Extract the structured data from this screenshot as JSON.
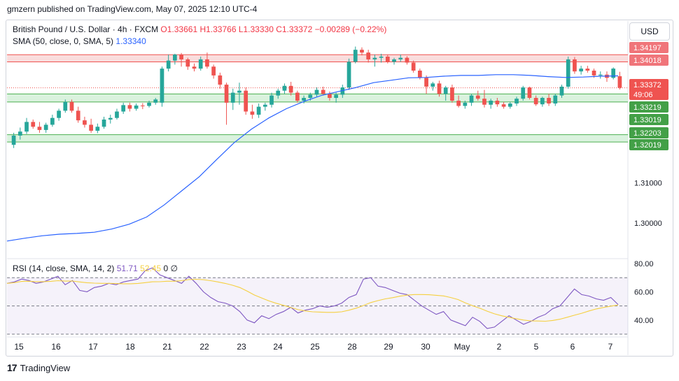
{
  "header": {
    "published": "gmzern published on TradingView.com, May 07, 2025 12:10 UTC-4"
  },
  "legend": {
    "symbol": "British Pound / U.S. Dollar · 4h · FXCM",
    "ohlc": "O1.33661 H1.33766 L1.33330 C1.33372 −0.00289 (−0.22%)",
    "sma_label": "SMA (50, close, 0, SMA, 5)",
    "sma_value": "1.33340",
    "rsi_label": "RSI (14, close, SMA, 14, 2)",
    "rsi_value": "51.71",
    "rsi_ma_value": "52.45",
    "rsi_extra": "0  ∅"
  },
  "currency": "USD",
  "branding": "TradingView",
  "colors": {
    "up": "#26a69a",
    "down": "#ef5350",
    "sma": "#2962ff",
    "rsi": "#7e57c2",
    "rsi_ma": "#f5d040",
    "zone_red": "#f8d7d7",
    "zone_green": "#d4f0d8"
  },
  "chart_data": {
    "type": "candlestick",
    "timeframe": "4h",
    "x_ticks": [
      "15",
      "16",
      "17",
      "18",
      "21",
      "22",
      "23",
      "24",
      "25",
      "28",
      "29",
      "30",
      "May",
      "2",
      "5",
      "6",
      "7"
    ],
    "y_ticks": [
      "1.30000",
      "1.31000"
    ],
    "price_tags": [
      {
        "value": "1.34197",
        "type": "zone"
      },
      {
        "value": "1.34018",
        "type": "zone"
      },
      {
        "value": "1.33372",
        "type": "last",
        "sub": "49:06"
      },
      {
        "value": "1.33219",
        "type": "zone"
      },
      {
        "value": "1.33019",
        "type": "zone"
      },
      {
        "value": "1.32203",
        "type": "zone"
      },
      {
        "value": "1.32019",
        "type": "zone"
      }
    ],
    "zones": [
      {
        "from": 1.34018,
        "to": 1.34197,
        "color": "red"
      },
      {
        "from": 1.33019,
        "to": 1.33219,
        "color": "green"
      },
      {
        "from": 1.32019,
        "to": 1.32203,
        "color": "green"
      }
    ],
    "last_price": 1.33372,
    "candles": [
      {
        "o": 1.3195,
        "h": 1.3225,
        "l": 1.3187,
        "c": 1.3218
      },
      {
        "o": 1.3218,
        "h": 1.3238,
        "l": 1.3208,
        "c": 1.3228
      },
      {
        "o": 1.3228,
        "h": 1.3262,
        "l": 1.3222,
        "c": 1.3252
      },
      {
        "o": 1.3252,
        "h": 1.3258,
        "l": 1.3235,
        "c": 1.324
      },
      {
        "o": 1.324,
        "h": 1.3252,
        "l": 1.3225,
        "c": 1.3232
      },
      {
        "o": 1.3232,
        "h": 1.325,
        "l": 1.3225,
        "c": 1.3245
      },
      {
        "o": 1.3245,
        "h": 1.327,
        "l": 1.324,
        "c": 1.3262
      },
      {
        "o": 1.3262,
        "h": 1.3285,
        "l": 1.3255,
        "c": 1.328
      },
      {
        "o": 1.328,
        "h": 1.3308,
        "l": 1.3275,
        "c": 1.3302
      },
      {
        "o": 1.3302,
        "h": 1.3308,
        "l": 1.3275,
        "c": 1.328
      },
      {
        "o": 1.328,
        "h": 1.329,
        "l": 1.325,
        "c": 1.3256
      },
      {
        "o": 1.3256,
        "h": 1.3265,
        "l": 1.3238,
        "c": 1.3245
      },
      {
        "o": 1.3245,
        "h": 1.326,
        "l": 1.3225,
        "c": 1.323
      },
      {
        "o": 1.323,
        "h": 1.3248,
        "l": 1.3224,
        "c": 1.324
      },
      {
        "o": 1.324,
        "h": 1.3265,
        "l": 1.3235,
        "c": 1.3258
      },
      {
        "o": 1.3258,
        "h": 1.327,
        "l": 1.3248,
        "c": 1.3262
      },
      {
        "o": 1.3262,
        "h": 1.3285,
        "l": 1.3258,
        "c": 1.3278
      },
      {
        "o": 1.3278,
        "h": 1.33,
        "l": 1.3272,
        "c": 1.3294
      },
      {
        "o": 1.3294,
        "h": 1.33,
        "l": 1.3278,
        "c": 1.3285
      },
      {
        "o": 1.3285,
        "h": 1.3298,
        "l": 1.328,
        "c": 1.3293
      },
      {
        "o": 1.3293,
        "h": 1.3299,
        "l": 1.3284,
        "c": 1.3292
      },
      {
        "o": 1.3292,
        "h": 1.3305,
        "l": 1.3288,
        "c": 1.33
      },
      {
        "o": 1.33,
        "h": 1.3312,
        "l": 1.3295,
        "c": 1.3308
      },
      {
        "o": 1.33,
        "h": 1.339,
        "l": 1.329,
        "c": 1.3385
      },
      {
        "o": 1.3385,
        "h": 1.342,
        "l": 1.3378,
        "c": 1.3405
      },
      {
        "o": 1.3405,
        "h": 1.3422,
        "l": 1.3395,
        "c": 1.342
      },
      {
        "o": 1.342,
        "h": 1.3424,
        "l": 1.339,
        "c": 1.3408
      },
      {
        "o": 1.3408,
        "h": 1.3412,
        "l": 1.3382,
        "c": 1.339
      },
      {
        "o": 1.339,
        "h": 1.3398,
        "l": 1.3378,
        "c": 1.3385
      },
      {
        "o": 1.3385,
        "h": 1.3415,
        "l": 1.338,
        "c": 1.3408
      },
      {
        "o": 1.3408,
        "h": 1.3425,
        "l": 1.3385,
        "c": 1.339
      },
      {
        "o": 1.339,
        "h": 1.3395,
        "l": 1.336,
        "c": 1.3368
      },
      {
        "o": 1.3368,
        "h": 1.3375,
        "l": 1.3335,
        "c": 1.3345
      },
      {
        "o": 1.3345,
        "h": 1.335,
        "l": 1.3245,
        "c": 1.33
      },
      {
        "o": 1.33,
        "h": 1.3335,
        "l": 1.3282,
        "c": 1.3325
      },
      {
        "o": 1.3325,
        "h": 1.335,
        "l": 1.3295,
        "c": 1.333
      },
      {
        "o": 1.333,
        "h": 1.3338,
        "l": 1.327,
        "c": 1.3278
      },
      {
        "o": 1.3278,
        "h": 1.3295,
        "l": 1.326,
        "c": 1.327
      },
      {
        "o": 1.327,
        "h": 1.3298,
        "l": 1.3262,
        "c": 1.329
      },
      {
        "o": 1.329,
        "h": 1.33,
        "l": 1.328,
        "c": 1.3295
      },
      {
        "o": 1.3295,
        "h": 1.3325,
        "l": 1.3288,
        "c": 1.3318
      },
      {
        "o": 1.3318,
        "h": 1.3335,
        "l": 1.331,
        "c": 1.333
      },
      {
        "o": 1.333,
        "h": 1.3348,
        "l": 1.3322,
        "c": 1.3342
      },
      {
        "o": 1.3342,
        "h": 1.3352,
        "l": 1.3318,
        "c": 1.3325
      },
      {
        "o": 1.3325,
        "h": 1.333,
        "l": 1.33,
        "c": 1.3305
      },
      {
        "o": 1.3305,
        "h": 1.3318,
        "l": 1.3298,
        "c": 1.3312
      },
      {
        "o": 1.3312,
        "h": 1.3325,
        "l": 1.3305,
        "c": 1.332
      },
      {
        "o": 1.332,
        "h": 1.3338,
        "l": 1.3315,
        "c": 1.3332
      },
      {
        "o": 1.3332,
        "h": 1.334,
        "l": 1.3318,
        "c": 1.3322
      },
      {
        "o": 1.3322,
        "h": 1.3328,
        "l": 1.3305,
        "c": 1.3312
      },
      {
        "o": 1.3312,
        "h": 1.3325,
        "l": 1.33,
        "c": 1.332
      },
      {
        "o": 1.332,
        "h": 1.3345,
        "l": 1.3312,
        "c": 1.3338
      },
      {
        "o": 1.3338,
        "h": 1.341,
        "l": 1.3332,
        "c": 1.3402
      },
      {
        "o": 1.3402,
        "h": 1.344,
        "l": 1.3398,
        "c": 1.3432
      },
      {
        "o": 1.3432,
        "h": 1.3438,
        "l": 1.3418,
        "c": 1.3425
      },
      {
        "o": 1.3425,
        "h": 1.3432,
        "l": 1.34,
        "c": 1.3408
      },
      {
        "o": 1.3408,
        "h": 1.342,
        "l": 1.339,
        "c": 1.3412
      },
      {
        "o": 1.3412,
        "h": 1.3422,
        "l": 1.34,
        "c": 1.3415
      },
      {
        "o": 1.3415,
        "h": 1.342,
        "l": 1.3398,
        "c": 1.3402
      },
      {
        "o": 1.3402,
        "h": 1.3412,
        "l": 1.3395,
        "c": 1.3408
      },
      {
        "o": 1.3408,
        "h": 1.342,
        "l": 1.3402,
        "c": 1.3412
      },
      {
        "o": 1.3412,
        "h": 1.3416,
        "l": 1.3395,
        "c": 1.34
      },
      {
        "o": 1.34,
        "h": 1.3405,
        "l": 1.3375,
        "c": 1.338
      },
      {
        "o": 1.338,
        "h": 1.3385,
        "l": 1.3358,
        "c": 1.3362
      },
      {
        "o": 1.3362,
        "h": 1.3368,
        "l": 1.3322,
        "c": 1.334
      },
      {
        "o": 1.334,
        "h": 1.3352,
        "l": 1.333,
        "c": 1.3348
      },
      {
        "o": 1.3348,
        "h": 1.3355,
        "l": 1.3315,
        "c": 1.3322
      },
      {
        "o": 1.3322,
        "h": 1.3342,
        "l": 1.3305,
        "c": 1.3338
      },
      {
        "o": 1.3338,
        "h": 1.3345,
        "l": 1.33,
        "c": 1.3305
      },
      {
        "o": 1.3305,
        "h": 1.3318,
        "l": 1.3288,
        "c": 1.3292
      },
      {
        "o": 1.3292,
        "h": 1.3305,
        "l": 1.3285,
        "c": 1.33
      },
      {
        "o": 1.33,
        "h": 1.3322,
        "l": 1.3292,
        "c": 1.3318
      },
      {
        "o": 1.3318,
        "h": 1.333,
        "l": 1.3305,
        "c": 1.331
      },
      {
        "o": 1.331,
        "h": 1.3332,
        "l": 1.3288,
        "c": 1.3295
      },
      {
        "o": 1.3295,
        "h": 1.331,
        "l": 1.3285,
        "c": 1.3305
      },
      {
        "o": 1.3305,
        "h": 1.3312,
        "l": 1.329,
        "c": 1.3296
      },
      {
        "o": 1.3296,
        "h": 1.3302,
        "l": 1.3285,
        "c": 1.329
      },
      {
        "o": 1.329,
        "h": 1.3302,
        "l": 1.3285,
        "c": 1.3298
      },
      {
        "o": 1.3298,
        "h": 1.3315,
        "l": 1.3292,
        "c": 1.331
      },
      {
        "o": 1.331,
        "h": 1.3342,
        "l": 1.3305,
        "c": 1.3338
      },
      {
        "o": 1.3338,
        "h": 1.334,
        "l": 1.3308,
        "c": 1.3312
      },
      {
        "o": 1.3312,
        "h": 1.3318,
        "l": 1.3292,
        "c": 1.3296
      },
      {
        "o": 1.3296,
        "h": 1.3315,
        "l": 1.329,
        "c": 1.3312
      },
      {
        "o": 1.3312,
        "h": 1.3322,
        "l": 1.3292,
        "c": 1.3298
      },
      {
        "o": 1.3298,
        "h": 1.3322,
        "l": 1.3292,
        "c": 1.3318
      },
      {
        "o": 1.3318,
        "h": 1.3345,
        "l": 1.3312,
        "c": 1.334
      },
      {
        "o": 1.334,
        "h": 1.3415,
        "l": 1.3335,
        "c": 1.3408
      },
      {
        "o": 1.3408,
        "h": 1.3414,
        "l": 1.3372,
        "c": 1.3378
      },
      {
        "o": 1.3378,
        "h": 1.3392,
        "l": 1.337,
        "c": 1.3385
      },
      {
        "o": 1.3385,
        "h": 1.3392,
        "l": 1.3375,
        "c": 1.338
      },
      {
        "o": 1.338,
        "h": 1.3385,
        "l": 1.3362,
        "c": 1.3368
      },
      {
        "o": 1.3368,
        "h": 1.3378,
        "l": 1.336,
        "c": 1.337
      },
      {
        "o": 1.337,
        "h": 1.3378,
        "l": 1.3352,
        "c": 1.3362
      },
      {
        "o": 1.3362,
        "h": 1.3388,
        "l": 1.3358,
        "c": 1.3385
      },
      {
        "o": 1.3366,
        "h": 1.3377,
        "l": 1.3333,
        "c": 1.3337
      }
    ],
    "sma": [
      1.2955,
      1.2962,
      1.2968,
      1.2972,
      1.2974,
      1.2977,
      1.2985,
      1.2997,
      1.3015,
      1.3045,
      1.308,
      1.3115,
      1.3158,
      1.32,
      1.3234,
      1.3262,
      1.3285,
      1.3303,
      1.3318,
      1.3328,
      1.3338,
      1.335,
      1.3356,
      1.3362,
      1.3363,
      1.3366,
      1.3368,
      1.3368,
      1.337,
      1.337,
      1.3368,
      1.3365,
      1.3363,
      1.3364,
      1.3366,
      1.3367
    ],
    "rsi": {
      "ylim": [
        30,
        80
      ],
      "bands": [
        70,
        50,
        30
      ],
      "y_ticks": [
        "80.00",
        "60.00",
        "40.00"
      ],
      "values": [
        66,
        67,
        69,
        68,
        66,
        67,
        69,
        71,
        65,
        68,
        61,
        60,
        63,
        64,
        66,
        65,
        67,
        68,
        69,
        75,
        77,
        72,
        70,
        68,
        66,
        71,
        66,
        60,
        56,
        53,
        52,
        50,
        46,
        40,
        38,
        43,
        41,
        44,
        46,
        49,
        45,
        47,
        48,
        50,
        49,
        50,
        52,
        56,
        58,
        69,
        70,
        64,
        63,
        61,
        59,
        58,
        54,
        50,
        47,
        44,
        46,
        40,
        38,
        36,
        42,
        39,
        34,
        35,
        39,
        43,
        40,
        37,
        39,
        42,
        44,
        48,
        50,
        56,
        62,
        58,
        57,
        55,
        54,
        56,
        51
      ]
    }
  }
}
